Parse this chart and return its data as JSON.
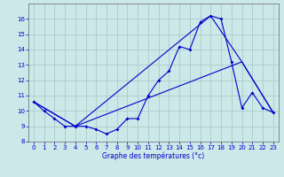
{
  "xlabel": "Graphe des températures (°c)",
  "background_color": "#cce8e8",
  "grid_color": "#aacccc",
  "line_color": "#0000cc",
  "xlim": [
    -0.5,
    23.5
  ],
  "ylim": [
    8,
    17
  ],
  "xticks": [
    0,
    1,
    2,
    3,
    4,
    5,
    6,
    7,
    8,
    9,
    10,
    11,
    12,
    13,
    14,
    15,
    16,
    17,
    18,
    19,
    20,
    21,
    22,
    23
  ],
  "yticks": [
    8,
    9,
    10,
    11,
    12,
    13,
    14,
    15,
    16
  ],
  "series1_x": [
    0,
    1,
    2,
    3,
    4,
    5,
    6,
    7,
    8,
    9,
    10,
    11,
    12,
    13,
    14,
    15,
    16,
    17,
    18,
    19,
    20,
    21,
    22,
    23
  ],
  "series1_y": [
    10.6,
    10.0,
    9.5,
    9.0,
    9.0,
    9.0,
    8.8,
    8.5,
    8.8,
    9.5,
    9.5,
    11.0,
    12.0,
    12.6,
    14.2,
    14.0,
    15.8,
    16.2,
    16.0,
    13.2,
    10.2,
    11.2,
    10.2,
    9.9
  ],
  "series2_x": [
    0,
    23
  ],
  "series2_y": [
    10.6,
    9.9
  ],
  "series3_x": [
    0,
    23
  ],
  "series3_y": [
    10.6,
    9.9
  ],
  "trend1_x": [
    0,
    4,
    17,
    20,
    23
  ],
  "trend1_y": [
    10.6,
    9.0,
    16.2,
    13.2,
    9.9
  ],
  "trend2_x": [
    0,
    4,
    20,
    23
  ],
  "trend2_y": [
    10.6,
    9.0,
    13.2,
    9.9
  ]
}
